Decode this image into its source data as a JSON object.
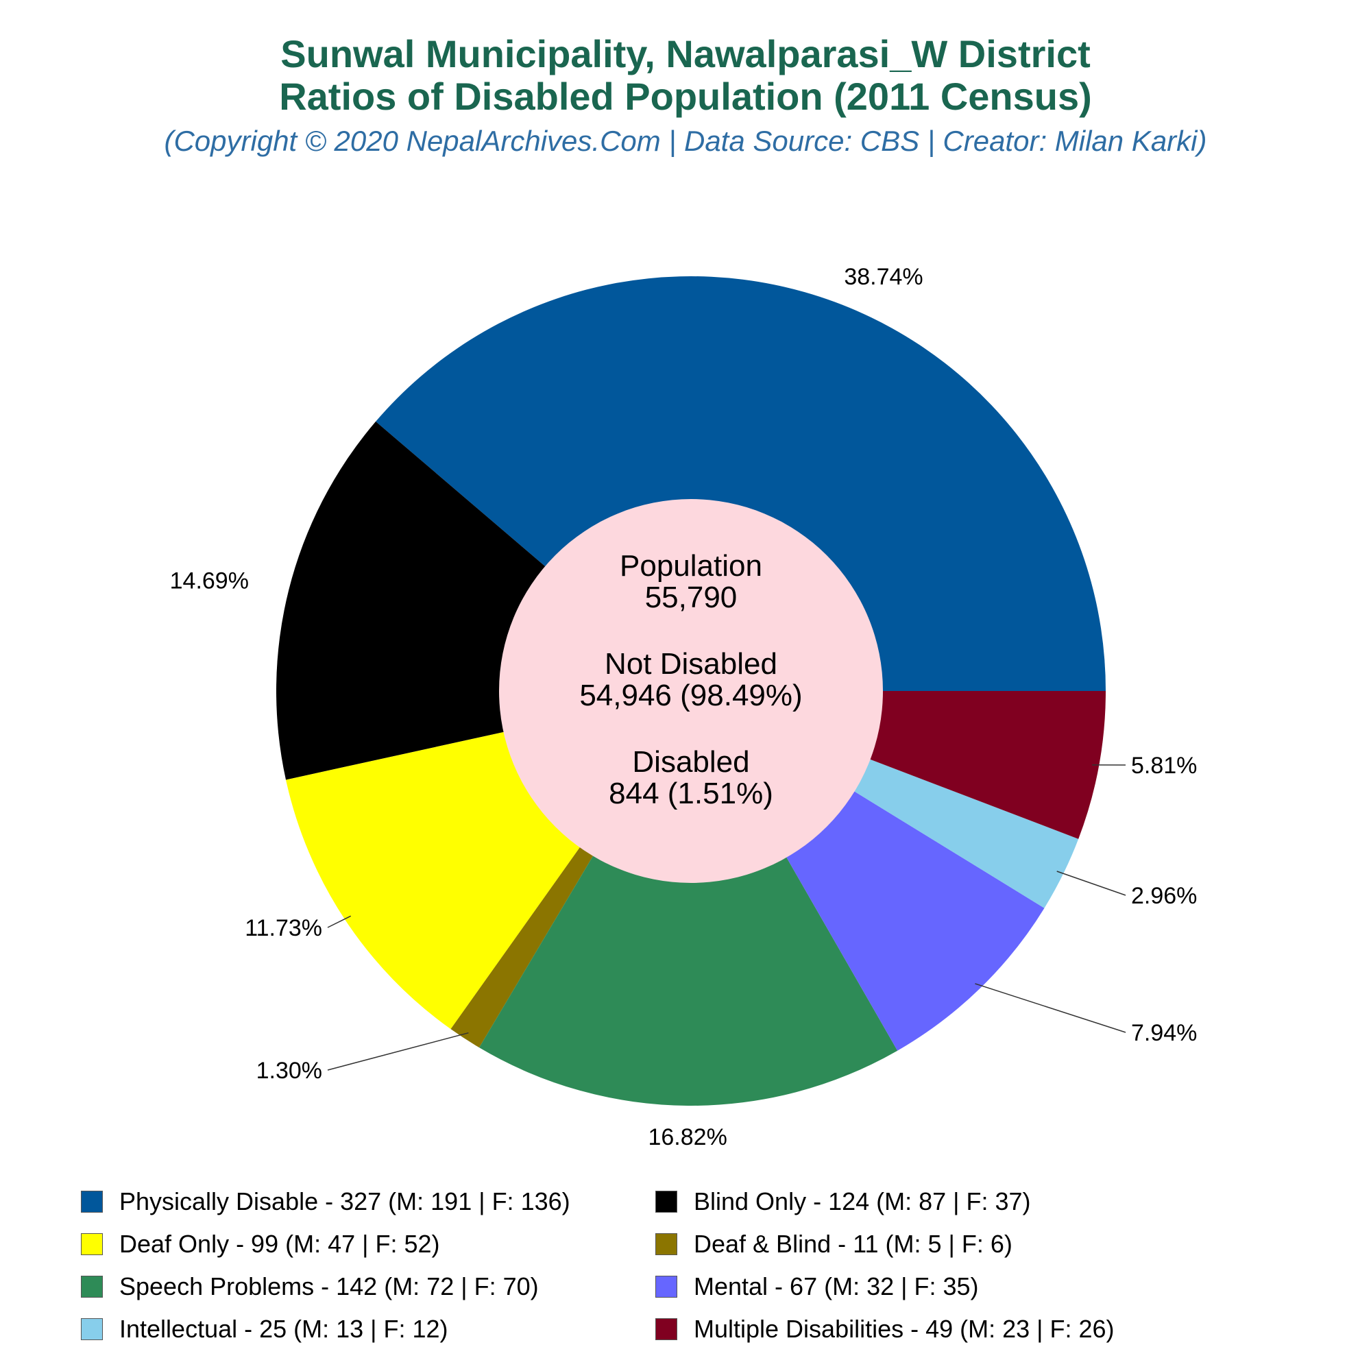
{
  "title_line1": "Sunwal Municipality, Nawalparasi_W District",
  "title_line2": "Ratios of Disabled Population (2011 Census)",
  "subtitle": "(Copyright © 2020 NepalArchives.Com | Data Source: CBS | Creator: Milan Karki)",
  "center": {
    "population_label": "Population",
    "population_value": "55,790",
    "not_disabled_label": "Not Disabled",
    "not_disabled_value": "54,946 (98.49%)",
    "disabled_label": "Disabled",
    "disabled_value": "844 (1.51%)"
  },
  "chart_data": {
    "type": "pie",
    "donut": true,
    "slices": [
      {
        "label": "Physically Disable",
        "value": 327,
        "male": 191,
        "female": 136,
        "percent_label": "38.74%",
        "color": "#01579b",
        "legend_text": "Physically Disable - 327 (M: 191 | F: 136)"
      },
      {
        "label": "Blind Only",
        "value": 124,
        "male": 87,
        "female": 37,
        "percent_label": "14.69%",
        "color": "#000000",
        "legend_text": "Blind Only - 124 (M: 87 | F: 37)"
      },
      {
        "label": "Deaf Only",
        "value": 99,
        "male": 47,
        "female": 52,
        "percent_label": "11.73%",
        "color": "#ffff00",
        "legend_text": "Deaf Only - 99 (M: 47 | F: 52)"
      },
      {
        "label": "Deaf & Blind",
        "value": 11,
        "male": 5,
        "female": 6,
        "percent_label": "1.30%",
        "color": "#8b7500",
        "legend_text": "Deaf & Blind - 11 (M: 5 | F: 6)"
      },
      {
        "label": "Speech Problems",
        "value": 142,
        "male": 72,
        "female": 70,
        "percent_label": "16.82%",
        "color": "#2e8b57",
        "legend_text": "Speech Problems - 142 (M: 72 | F: 70)"
      },
      {
        "label": "Mental",
        "value": 67,
        "male": 32,
        "female": 35,
        "percent_label": "7.94%",
        "color": "#6666ff",
        "legend_text": "Mental - 67 (M: 32 | F: 35)"
      },
      {
        "label": "Intellectual",
        "value": 25,
        "male": 13,
        "female": 12,
        "percent_label": "2.96%",
        "color": "#87ceeb",
        "legend_text": "Intellectual - 25 (M: 13 | F: 12)"
      },
      {
        "label": "Multiple Disabilities",
        "value": 49,
        "male": 23,
        "female": 26,
        "percent_label": "5.81%",
        "color": "#800020",
        "legend_text": "Multiple Disabilities - 49 (M: 23 | F: 26)"
      }
    ],
    "center_fill": "#fdd8de",
    "legend_position": "bottom"
  }
}
